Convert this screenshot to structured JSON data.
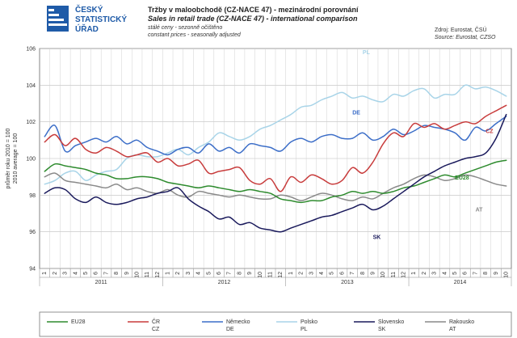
{
  "header": {
    "logo": [
      "ČESKÝ",
      "STATISTICKÝ",
      "ÚŘAD"
    ],
    "title_cz": "Tržby v maloobchodě (CZ-NACE 47) - mezinárodní porovnání",
    "title_en": "Sales in retail trade (CZ-NACE 47) - international comparison",
    "subtitle_cz": "stálé ceny - sezonně očištěno",
    "subtitle_en": "constant prices - seasonally adjusted",
    "source_cz": "Zdroj: Eurostat, ČSÚ",
    "source_en": "Source: Eurostat, CZSO"
  },
  "chart_data": {
    "type": "line",
    "ylabel_cz": "průměr roku 2010 = 100",
    "ylabel_en": "2010 average = 100",
    "ylim": [
      94,
      106
    ],
    "yticks": [
      94,
      96,
      98,
      100,
      102,
      104,
      106
    ],
    "grid": true,
    "legend_position": "bottom",
    "x_month_labels": [
      "1",
      "2",
      "3",
      "4",
      "5",
      "6",
      "7",
      "8",
      "9",
      "10",
      "11",
      "12",
      "1",
      "2",
      "3",
      "4",
      "5",
      "6",
      "7",
      "8",
      "9",
      "10",
      "11",
      "12",
      "1",
      "2",
      "3",
      "4",
      "5",
      "6",
      "7",
      "8",
      "9",
      "10",
      "11",
      "12",
      "1",
      "2",
      "3",
      "4",
      "5",
      "6",
      "7",
      "8",
      "9",
      "10"
    ],
    "x_year_labels": [
      "2011",
      "2012",
      "2013",
      "2014"
    ],
    "series": [
      {
        "name": "EU28",
        "legend": [
          "EU28"
        ],
        "color": "#2e8b2e",
        "label": "EU28",
        "values": [
          99.3,
          99.7,
          99.6,
          99.5,
          99.4,
          99.2,
          99.1,
          98.9,
          98.9,
          99.0,
          99.0,
          98.9,
          98.7,
          98.6,
          98.5,
          98.4,
          98.5,
          98.4,
          98.3,
          98.2,
          98.3,
          98.2,
          98.1,
          97.8,
          97.7,
          97.6,
          97.7,
          97.7,
          97.9,
          98.0,
          98.2,
          98.1,
          98.2,
          98.1,
          98.2,
          98.4,
          98.5,
          98.7,
          98.9,
          99.1,
          99.0,
          99.2,
          99.4,
          99.6,
          99.8,
          99.9
        ]
      },
      {
        "name": "ČR",
        "legend": [
          "ČR",
          "CZ"
        ],
        "color": "#c83c3c",
        "label": "CZ",
        "values": [
          100.9,
          101.3,
          100.7,
          101.1,
          100.5,
          100.3,
          100.6,
          100.4,
          100.1,
          100.2,
          100.3,
          99.8,
          100.0,
          99.6,
          99.7,
          99.9,
          99.2,
          99.3,
          99.4,
          99.5,
          98.8,
          98.6,
          98.9,
          98.2,
          99.0,
          98.7,
          99.1,
          98.9,
          98.6,
          98.8,
          99.5,
          99.2,
          99.8,
          100.8,
          101.4,
          101.2,
          101.9,
          101.7,
          101.9,
          101.6,
          101.8,
          102.0,
          101.9,
          102.3,
          102.6,
          102.9
        ]
      },
      {
        "name": "Německo",
        "legend": [
          "Německo",
          "DE"
        ],
        "color": "#3c6ec8",
        "label": "DE",
        "values": [
          101.2,
          101.8,
          100.4,
          100.7,
          100.9,
          101.1,
          100.9,
          101.2,
          100.8,
          101.0,
          100.6,
          100.4,
          100.2,
          100.5,
          100.6,
          100.3,
          100.8,
          100.4,
          100.6,
          100.3,
          100.8,
          100.7,
          100.6,
          100.4,
          100.9,
          101.1,
          100.9,
          101.2,
          101.3,
          101.1,
          101.1,
          101.4,
          101.0,
          101.2,
          101.6,
          101.3,
          101.5,
          101.8,
          101.7,
          101.6,
          101.4,
          101.0,
          101.7,
          101.5,
          101.9,
          102.3
        ]
      },
      {
        "name": "Polsko",
        "legend": [
          "Polsko",
          "PL"
        ],
        "color": "#a8d4e8",
        "label": "PL",
        "values": [
          98.6,
          98.8,
          99.2,
          99.3,
          98.8,
          99.1,
          99.3,
          99.4,
          100.0,
          100.2,
          100.1,
          100.1,
          100.3,
          100.5,
          100.2,
          100.6,
          100.9,
          101.4,
          101.2,
          101.0,
          101.2,
          101.6,
          101.8,
          102.1,
          102.4,
          102.8,
          102.9,
          103.2,
          103.4,
          103.6,
          103.3,
          103.4,
          103.2,
          103.1,
          103.5,
          103.4,
          103.7,
          103.8,
          103.3,
          103.5,
          103.5,
          104.0,
          103.8,
          103.9,
          103.7,
          103.4
        ]
      },
      {
        "name": "Slovensko",
        "legend": [
          "Slovensko",
          "SK"
        ],
        "color": "#1a1a5c",
        "label": "SK",
        "values": [
          98.1,
          98.4,
          98.3,
          97.8,
          97.6,
          97.9,
          97.6,
          97.5,
          97.6,
          97.8,
          97.9,
          98.1,
          98.2,
          98.4,
          97.8,
          97.4,
          97.1,
          96.7,
          96.8,
          96.4,
          96.5,
          96.2,
          96.1,
          96.0,
          96.2,
          96.4,
          96.6,
          96.8,
          96.9,
          97.1,
          97.3,
          97.5,
          97.2,
          97.4,
          97.8,
          98.2,
          98.6,
          99.0,
          99.3,
          99.6,
          99.8,
          100.0,
          100.1,
          100.3,
          101.1,
          102.4
        ]
      },
      {
        "name": "Rakousko",
        "legend": [
          "Rakousko",
          "AT"
        ],
        "color": "#8a8a8a",
        "label": "AT",
        "values": [
          99.0,
          99.2,
          98.8,
          98.7,
          98.6,
          98.5,
          98.4,
          98.6,
          98.3,
          98.4,
          98.2,
          98.1,
          98.3,
          98.0,
          97.9,
          98.2,
          98.1,
          98.0,
          97.9,
          98.0,
          97.9,
          97.8,
          97.8,
          98.0,
          97.9,
          97.7,
          97.9,
          98.1,
          98.0,
          97.8,
          97.7,
          97.9,
          97.8,
          98.1,
          98.4,
          98.6,
          98.9,
          99.1,
          99.0,
          98.8,
          98.9,
          99.1,
          99.0,
          98.8,
          98.6,
          98.5
        ]
      }
    ]
  }
}
